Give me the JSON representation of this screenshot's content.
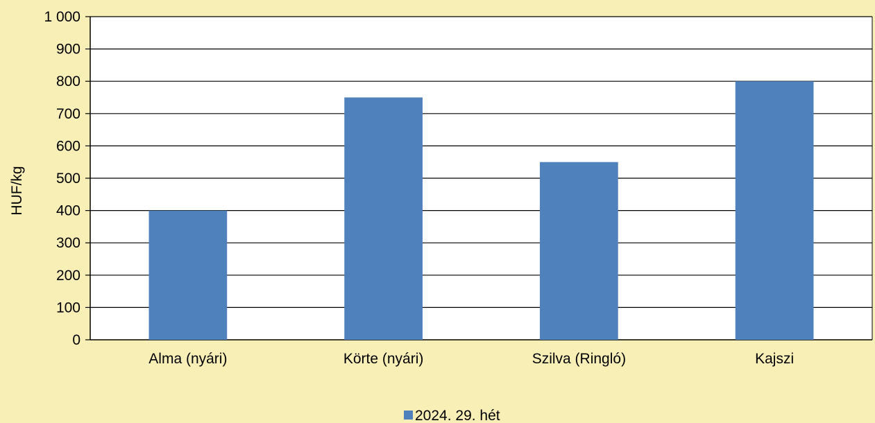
{
  "chart_data": {
    "type": "bar",
    "categories": [
      "Alma (nyári)",
      "Körte (nyári)",
      "Szilva (Ringló)",
      "Kajszi"
    ],
    "series": [
      {
        "name": "2024. 29. hét",
        "values": [
          400,
          750,
          550,
          800
        ],
        "color": "#4f81bd"
      }
    ],
    "ylabel": "HUF/kg",
    "ylim": [
      0,
      1000
    ],
    "yticks": [
      0,
      100,
      200,
      300,
      400,
      500,
      600,
      700,
      800,
      900,
      1000
    ],
    "ytick_labels": [
      "0",
      "100",
      "200",
      "300",
      "400",
      "500",
      "600",
      "700",
      "800",
      "900",
      "1 000"
    ],
    "grid": true,
    "legend_position": "bottom",
    "background_color": "#f8efb7",
    "plot_background_color": "#ffffff"
  }
}
